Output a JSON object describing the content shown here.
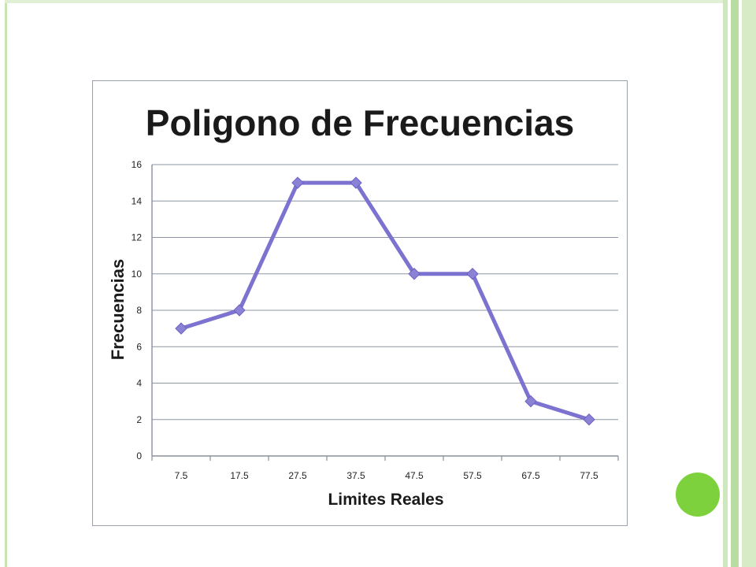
{
  "chart_data": {
    "type": "line",
    "title": "Poligono de Frecuencias",
    "xlabel": "Limites Reales",
    "ylabel": "Frecuencias",
    "categories": [
      "7.5",
      "17.5",
      "27.5",
      "37.5",
      "47.5",
      "57.5",
      "67.5",
      "77.5"
    ],
    "series": [
      {
        "values": [
          7,
          8,
          15,
          15,
          10,
          10,
          3,
          2
        ]
      }
    ],
    "ylim": [
      0,
      16
    ],
    "yticks": [
      0,
      2,
      4,
      6,
      8,
      10,
      12,
      14,
      16
    ],
    "grid": true,
    "marker": "diamond",
    "line_color": "#7b73cf",
    "marker_color": "#8b82d6"
  }
}
